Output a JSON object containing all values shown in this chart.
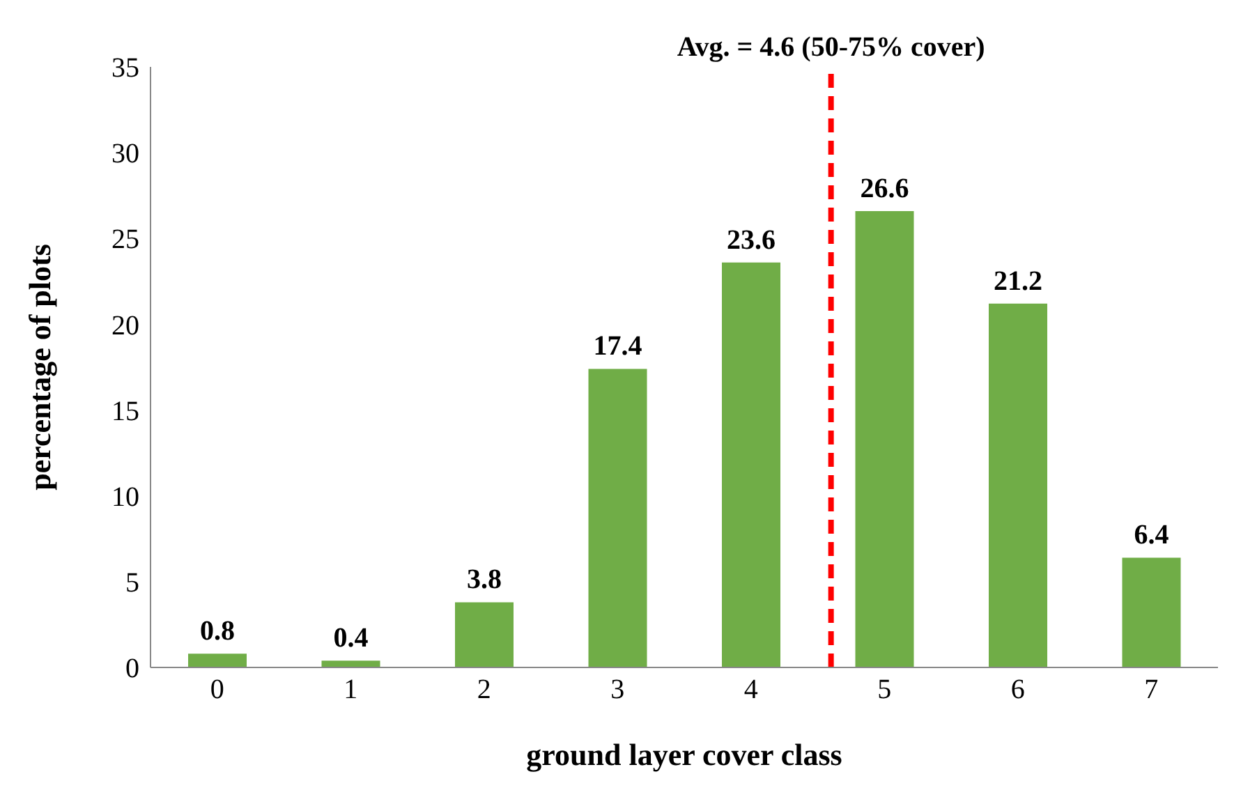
{
  "chart_data": {
    "type": "bar",
    "xlabel": "ground layer cover class",
    "ylabel": "percentage of plots",
    "x": [
      0,
      1,
      2,
      3,
      4,
      5,
      6,
      7
    ],
    "values": [
      0.8,
      0.4,
      3.8,
      17.4,
      23.6,
      26.6,
      21.2,
      6.4
    ],
    "color": "#70ad47",
    "xlim": [
      -0.5,
      7.5
    ],
    "xticks": [
      0,
      1,
      2,
      3,
      4,
      5,
      6,
      7
    ],
    "ylim": [
      0,
      35
    ],
    "yticks": [
      0,
      5,
      10,
      15,
      20,
      25,
      30,
      35
    ],
    "data_labels": true,
    "grid": false,
    "legend": false,
    "ref_lines": [
      {
        "axis": "x",
        "value": 4.6,
        "label": "Avg. = 4.6 (50-75% cover)",
        "color": "#ff0000",
        "line_style": "dashed"
      }
    ]
  }
}
